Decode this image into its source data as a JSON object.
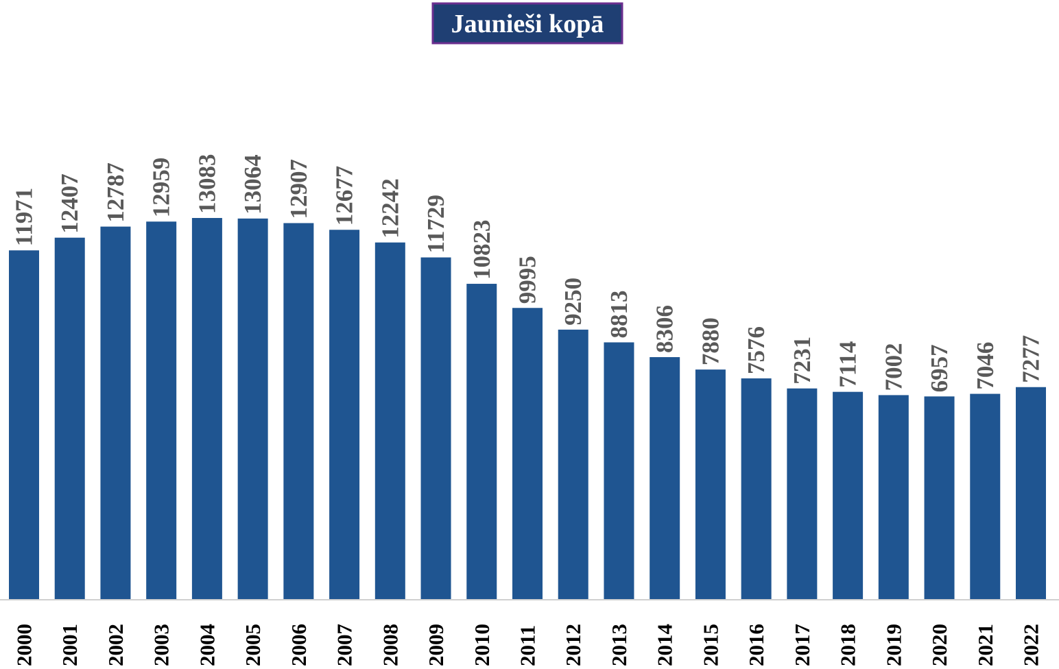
{
  "chart_data": {
    "type": "bar",
    "title": "Jaunieši kopā",
    "categories": [
      "2000",
      "2001",
      "2002",
      "2003",
      "2004",
      "2005",
      "2006",
      "2007",
      "2008",
      "2009",
      "2010",
      "2011",
      "2012",
      "2013",
      "2014",
      "2015",
      "2016",
      "2017",
      "2018",
      "2019",
      "2020",
      "2021",
      "2022"
    ],
    "values": [
      11971,
      12407,
      12787,
      12959,
      13083,
      13064,
      12907,
      12677,
      12242,
      11729,
      10823,
      9995,
      9250,
      8813,
      8306,
      7880,
      7576,
      7231,
      7114,
      7002,
      6957,
      7046,
      7277
    ],
    "color": "#1f5591"
  }
}
